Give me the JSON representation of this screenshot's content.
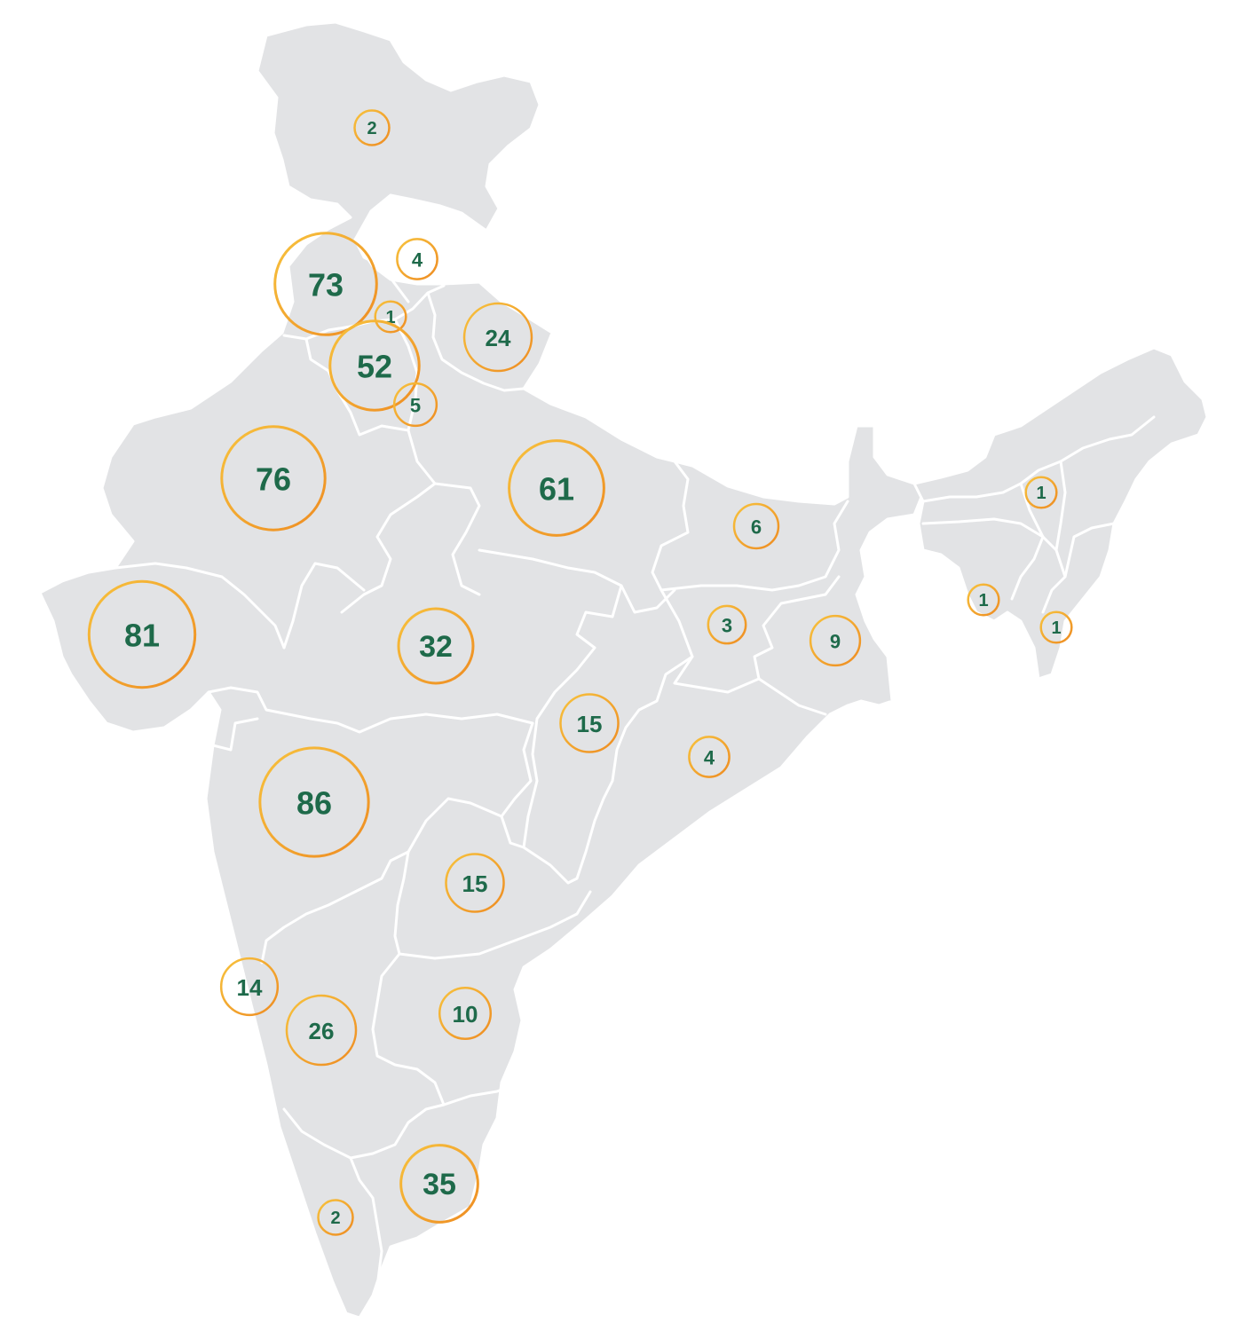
{
  "map": {
    "ring_color_light": "#f7c23d",
    "ring_color_dark": "#ee8c22",
    "label_color": "#1e6a4a",
    "land_color": "#e2e3e5",
    "border_color": "#ffffff",
    "markers": [
      {
        "id": "jammu-kashmir",
        "value": "2"
      },
      {
        "id": "himachal-pradesh",
        "value": "4"
      },
      {
        "id": "punjab",
        "value": "73"
      },
      {
        "id": "chandigarh",
        "value": "1"
      },
      {
        "id": "uttarakhand",
        "value": "24"
      },
      {
        "id": "haryana",
        "value": "52"
      },
      {
        "id": "delhi",
        "value": "5"
      },
      {
        "id": "rajasthan",
        "value": "76"
      },
      {
        "id": "uttar-pradesh",
        "value": "61"
      },
      {
        "id": "bihar",
        "value": "6"
      },
      {
        "id": "assam",
        "value": "1"
      },
      {
        "id": "gujarat",
        "value": "81"
      },
      {
        "id": "madhya-pradesh",
        "value": "32"
      },
      {
        "id": "jharkhand",
        "value": "3"
      },
      {
        "id": "west-bengal",
        "value": "9"
      },
      {
        "id": "meghalaya",
        "value": "1"
      },
      {
        "id": "mizoram",
        "value": "1"
      },
      {
        "id": "chhattisgarh",
        "value": "15"
      },
      {
        "id": "odisha",
        "value": "4"
      },
      {
        "id": "maharashtra",
        "value": "86"
      },
      {
        "id": "telangana",
        "value": "15"
      },
      {
        "id": "goa",
        "value": "14"
      },
      {
        "id": "karnataka",
        "value": "26"
      },
      {
        "id": "andhra-pradesh",
        "value": "10"
      },
      {
        "id": "tamil-nadu",
        "value": "35"
      },
      {
        "id": "kerala",
        "value": "2"
      }
    ]
  }
}
